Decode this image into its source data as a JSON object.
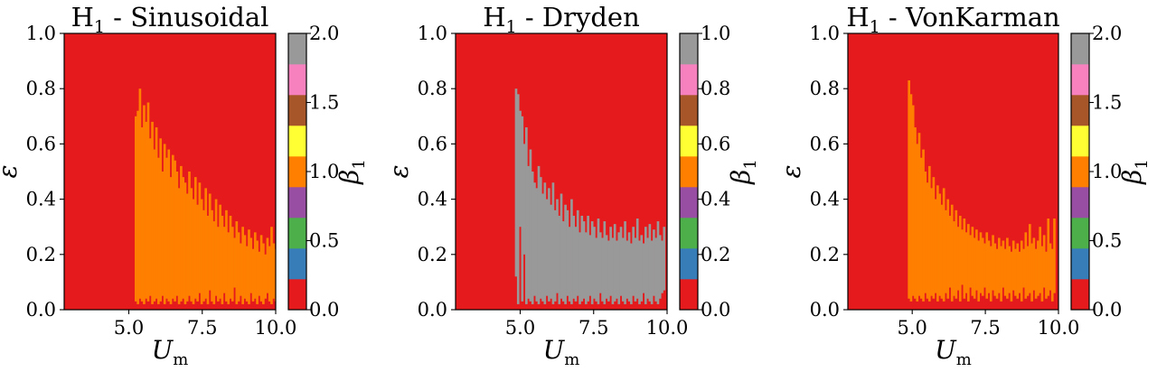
{
  "colors": {
    "cmap": [
      "#e41a1c",
      "#377eb8",
      "#4daf4a",
      "#984ea3",
      "#ff7f00",
      "#ffff33",
      "#a65628",
      "#f781bf",
      "#999999"
    ],
    "background": "#e41a1c"
  },
  "chart_data": [
    {
      "type": "heatmap",
      "title": "H",
      "title_sub": "1",
      "title_suffix": " - Sinusoidal",
      "xlabel": "U",
      "xlabel_sub": "m",
      "ylabel": "ε",
      "colorbar_label": "β",
      "colorbar_label_sub": "1",
      "xlim": [
        2.8,
        10.0
      ],
      "ylim": [
        0.0,
        1.0
      ],
      "xticks": [
        5.0,
        7.5,
        10.0
      ],
      "xtick_labels": [
        "5.0",
        "7.5",
        "10.0"
      ],
      "yticks": [
        0.0,
        0.2,
        0.4,
        0.6,
        0.8,
        1.0
      ],
      "ytick_labels": [
        "0.0",
        "0.2",
        "0.4",
        "0.6",
        "0.8",
        "1.0"
      ],
      "colorbar_range": [
        0.0,
        2.0
      ],
      "colorbar_ticks": [
        0.0,
        0.5,
        1.0,
        1.5,
        2.0
      ],
      "colorbar_tick_labels": [
        "0.0",
        "0.5",
        "1.0",
        "1.5",
        "2.0"
      ],
      "region_value": 1.0,
      "region_color_index": 4,
      "region_start_x": 5.2,
      "bin_width": 0.07,
      "upper_boundary": [
        0.7,
        0.72,
        0.8,
        0.66,
        0.74,
        0.68,
        0.75,
        0.62,
        0.68,
        0.58,
        0.66,
        0.55,
        0.62,
        0.5,
        0.6,
        0.55,
        0.58,
        0.48,
        0.56,
        0.54,
        0.5,
        0.44,
        0.52,
        0.48,
        0.46,
        0.42,
        0.5,
        0.44,
        0.4,
        0.48,
        0.38,
        0.46,
        0.4,
        0.36,
        0.44,
        0.34,
        0.42,
        0.36,
        0.32,
        0.4,
        0.3,
        0.38,
        0.34,
        0.3,
        0.36,
        0.28,
        0.34,
        0.3,
        0.26,
        0.32,
        0.28,
        0.24,
        0.3,
        0.27,
        0.23,
        0.29,
        0.26,
        0.22,
        0.28,
        0.25,
        0.21,
        0.27,
        0.24,
        0.2,
        0.26,
        0.23,
        0.3,
        0.24,
        0.22,
        0.3,
        0.26,
        0.18,
        0.47
      ],
      "lower_boundary": [
        0.03,
        0.02,
        0.04,
        0.03,
        0.02,
        0.04,
        0.03,
        0.05,
        0.02,
        0.03,
        0.04,
        0.02,
        0.03,
        0.05,
        0.02,
        0.04,
        0.03,
        0.02,
        0.04,
        0.03,
        0.05,
        0.02,
        0.03,
        0.04,
        0.02,
        0.03,
        0.05,
        0.03,
        0.02,
        0.04,
        0.03,
        0.06,
        0.02,
        0.03,
        0.04,
        0.02,
        0.07,
        0.03,
        0.02,
        0.05,
        0.03,
        0.04,
        0.02,
        0.06,
        0.03,
        0.02,
        0.04,
        0.03,
        0.08,
        0.02,
        0.03,
        0.05,
        0.02,
        0.04,
        0.03,
        0.02,
        0.06,
        0.03,
        0.04,
        0.02,
        0.05,
        0.03,
        0.02,
        0.04,
        0.06,
        0.03,
        0.02,
        0.04,
        0.03,
        0.05,
        0.02,
        0.03,
        0.04
      ]
    },
    {
      "type": "heatmap",
      "title": "H",
      "title_sub": "1",
      "title_suffix": " - Dryden",
      "xlabel": "U",
      "xlabel_sub": "m",
      "ylabel": "ε",
      "colorbar_label": "β",
      "colorbar_label_sub": "1",
      "xlim": [
        2.8,
        10.0
      ],
      "ylim": [
        0.0,
        1.0
      ],
      "xticks": [
        5.0,
        7.5,
        10.0
      ],
      "xtick_labels": [
        "5.0",
        "7.5",
        "10.0"
      ],
      "yticks": [
        0.0,
        0.2,
        0.4,
        0.6,
        0.8,
        1.0
      ],
      "ytick_labels": [
        "0.0",
        "0.2",
        "0.4",
        "0.6",
        "0.8",
        "1.0"
      ],
      "colorbar_range": [
        0.0,
        1.0
      ],
      "colorbar_ticks": [
        0.0,
        0.2,
        0.4,
        0.6,
        0.8,
        1.0
      ],
      "colorbar_tick_labels": [
        "0.0",
        "0.2",
        "0.4",
        "0.6",
        "0.8",
        "1.0"
      ],
      "region_value": 1.0,
      "region_color_index": 8,
      "region_start_x": 4.82,
      "bin_width": 0.07,
      "upper_boundary": [
        0.8,
        0.78,
        0.72,
        0.7,
        0.6,
        0.66,
        0.52,
        0.58,
        0.5,
        0.46,
        0.44,
        0.52,
        0.48,
        0.42,
        0.46,
        0.4,
        0.44,
        0.38,
        0.46,
        0.36,
        0.4,
        0.34,
        0.42,
        0.32,
        0.38,
        0.36,
        0.3,
        0.4,
        0.34,
        0.3,
        0.36,
        0.28,
        0.34,
        0.32,
        0.28,
        0.34,
        0.27,
        0.32,
        0.3,
        0.26,
        0.33,
        0.28,
        0.26,
        0.32,
        0.27,
        0.25,
        0.3,
        0.26,
        0.31,
        0.25,
        0.28,
        0.3,
        0.26,
        0.32,
        0.25,
        0.28,
        0.24,
        0.3,
        0.26,
        0.33,
        0.25,
        0.27,
        0.24,
        0.3,
        0.26,
        0.31,
        0.25,
        0.29,
        0.26,
        0.32,
        0.27,
        0.25,
        0.3
      ],
      "lower_boundary": [
        0.12,
        0.02,
        0.3,
        0.03,
        0.2,
        0.02,
        0.04,
        0.03,
        0.02,
        0.05,
        0.03,
        0.02,
        0.04,
        0.03,
        0.02,
        0.05,
        0.03,
        0.04,
        0.02,
        0.03,
        0.06,
        0.02,
        0.04,
        0.03,
        0.02,
        0.05,
        0.03,
        0.02,
        0.04,
        0.03,
        0.05,
        0.02,
        0.03,
        0.04,
        0.02,
        0.03,
        0.05,
        0.02,
        0.04,
        0.03,
        0.02,
        0.06,
        0.03,
        0.02,
        0.04,
        0.03,
        0.05,
        0.02,
        0.03,
        0.04,
        0.02,
        0.05,
        0.03,
        0.02,
        0.04,
        0.03,
        0.02,
        0.05,
        0.03,
        0.04,
        0.02,
        0.03,
        0.06,
        0.02,
        0.04,
        0.03,
        0.02,
        0.05,
        0.03,
        0.02,
        0.04,
        0.06,
        0.07
      ]
    },
    {
      "type": "heatmap",
      "title": "H",
      "title_sub": "1",
      "title_suffix": " - VonKarman",
      "xlabel": "U",
      "xlabel_sub": "m",
      "ylabel": "ε",
      "colorbar_label": "β",
      "colorbar_label_sub": "1",
      "xlim": [
        2.8,
        10.0
      ],
      "ylim": [
        0.0,
        1.0
      ],
      "xticks": [
        5.0,
        7.5,
        10.0
      ],
      "xtick_labels": [
        "5.0",
        "7.5",
        "10.0"
      ],
      "yticks": [
        0.0,
        0.2,
        0.4,
        0.6,
        0.8,
        1.0
      ],
      "ytick_labels": [
        "0.0",
        "0.2",
        "0.4",
        "0.6",
        "0.8",
        "1.0"
      ],
      "colorbar_range": [
        0.0,
        2.0
      ],
      "colorbar_ticks": [
        0.0,
        0.5,
        1.0,
        1.5,
        2.0
      ],
      "colorbar_tick_labels": [
        "0.0",
        "0.5",
        "1.0",
        "1.5",
        "2.0"
      ],
      "region_value": 1.0,
      "region_color_index": 4,
      "region_start_x": 4.85,
      "bin_width": 0.07,
      "upper_boundary": [
        0.83,
        0.78,
        0.74,
        0.66,
        0.6,
        0.64,
        0.55,
        0.58,
        0.5,
        0.46,
        0.52,
        0.44,
        0.48,
        0.4,
        0.45,
        0.42,
        0.38,
        0.44,
        0.36,
        0.4,
        0.34,
        0.38,
        0.32,
        0.36,
        0.3,
        0.34,
        0.29,
        0.33,
        0.28,
        0.31,
        0.27,
        0.3,
        0.26,
        0.29,
        0.25,
        0.28,
        0.26,
        0.24,
        0.28,
        0.25,
        0.23,
        0.27,
        0.24,
        0.22,
        0.26,
        0.23,
        0.25,
        0.22,
        0.26,
        0.23,
        0.21,
        0.25,
        0.22,
        0.24,
        0.21,
        0.25,
        0.22,
        0.28,
        0.23,
        0.31,
        0.24,
        0.26,
        0.22,
        0.25,
        0.3,
        0.23,
        0.27,
        0.21,
        0.33,
        0.24,
        0.22,
        0.33
      ],
      "lower_boundary": [
        0.04,
        0.03,
        0.05,
        0.04,
        0.03,
        0.05,
        0.04,
        0.03,
        0.06,
        0.04,
        0.03,
        0.05,
        0.04,
        0.06,
        0.03,
        0.05,
        0.04,
        0.03,
        0.06,
        0.04,
        0.08,
        0.03,
        0.05,
        0.04,
        0.07,
        0.03,
        0.09,
        0.04,
        0.06,
        0.03,
        0.08,
        0.05,
        0.04,
        0.07,
        0.03,
        0.06,
        0.05,
        0.08,
        0.04,
        0.06,
        0.03,
        0.07,
        0.05,
        0.04,
        0.06,
        0.03,
        0.08,
        0.05,
        0.04,
        0.06,
        0.03,
        0.07,
        0.05,
        0.04,
        0.06,
        0.03,
        0.08,
        0.04,
        0.05,
        0.06,
        0.03,
        0.07,
        0.04,
        0.05,
        0.06,
        0.03,
        0.08,
        0.04,
        0.05,
        0.07,
        0.03,
        0.06
      ]
    }
  ]
}
